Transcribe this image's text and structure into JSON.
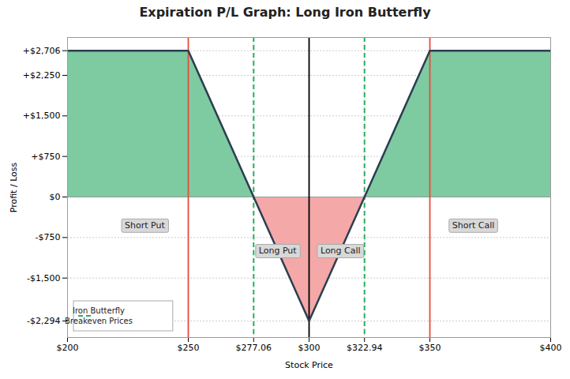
{
  "chart_data": {
    "type": "line",
    "title": "Expiration P/L Graph: Long Iron Butterfly",
    "x_label": "Stock Price",
    "y_label": "Profit / Loss",
    "x": [
      200,
      250,
      300,
      350,
      400
    ],
    "values": [
      2706,
      2706,
      -2294,
      2706,
      2706
    ],
    "color": "#2c3e50",
    "fill_colors": {
      "profit": "#7ecba1",
      "loss": "#f4a8a8"
    },
    "xlim": [
      200,
      400
    ],
    "ylim": [
      -2600,
      2950
    ],
    "xticks": [
      {
        "value": 200,
        "label": "$200"
      },
      {
        "value": 250,
        "label": "$250"
      },
      {
        "value": 277.06,
        "label": "$277.06"
      },
      {
        "value": 300,
        "label": "$300"
      },
      {
        "value": 322.94,
        "label": "$322.94"
      },
      {
        "value": 350,
        "label": "$350"
      },
      {
        "value": 400,
        "label": "$400"
      }
    ],
    "yticks": [
      {
        "value": 2706,
        "label": "+$2,706"
      },
      {
        "value": 2250,
        "label": "+$2,250"
      },
      {
        "value": 1500,
        "label": "+$1,500"
      },
      {
        "value": 750,
        "label": "+$750"
      },
      {
        "value": 0,
        "label": "$0"
      },
      {
        "value": -750,
        "label": "-$750"
      },
      {
        "value": -1500,
        "label": "-$1,500"
      },
      {
        "value": -2294,
        "label": "-$2,294"
      }
    ],
    "hlines": [
      {
        "y": 0,
        "color": "#999999"
      }
    ],
    "vlines": [
      {
        "x": 250,
        "color": "#e74c3c"
      },
      {
        "x": 350,
        "color": "#e74c3c"
      },
      {
        "x": 277.06,
        "color": "#27ae60",
        "line_style": "dashed",
        "name": "Iron Butterfly\nBreakeven Prices"
      },
      {
        "x": 322.94,
        "color": "#27ae60",
        "line_style": "dashed",
        "name": "Iron Butterfly\nBreakeven Prices"
      },
      {
        "x": 300,
        "color": "black"
      }
    ],
    "annotations": [
      {
        "text": "Short Put",
        "x": 232,
        "y": -530
      },
      {
        "text": "Short Call",
        "x": 368,
        "y": -530
      },
      {
        "text": "Long Put",
        "x": 287,
        "y": -1000
      },
      {
        "text": "Long Call",
        "x": 313,
        "y": -1000
      }
    ],
    "grid": true,
    "legend": "lower left"
  }
}
